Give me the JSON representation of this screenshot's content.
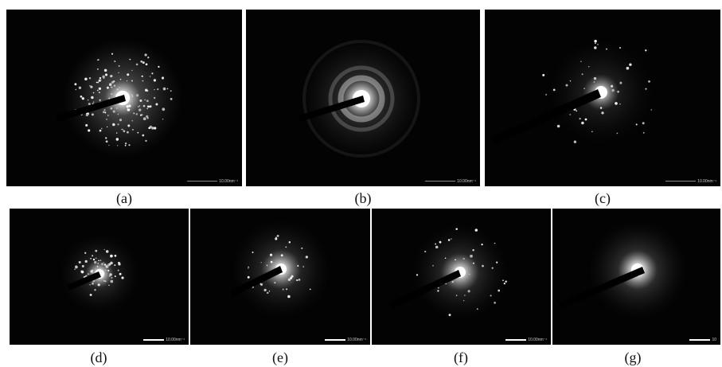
{
  "figure": {
    "panels": [
      {
        "id": "a",
        "caption": "(a)",
        "scale_bar_text": "10.00nm⁻¹",
        "pattern": "spotty-rings"
      },
      {
        "id": "b",
        "caption": "(b)",
        "scale_bar_text": "10.00nm⁻¹",
        "pattern": "diffuse-rings"
      },
      {
        "id": "c",
        "caption": "(c)",
        "scale_bar_text": "10.00nm⁻¹",
        "pattern": "sparse-spots"
      },
      {
        "id": "d",
        "caption": "(d)",
        "scale_bar_text": "10.00nm⁻¹",
        "pattern": "spotty-ring"
      },
      {
        "id": "e",
        "caption": "(e)",
        "scale_bar_text": "10.00nm⁻¹",
        "pattern": "diffuse-halo"
      },
      {
        "id": "f",
        "caption": "(f)",
        "scale_bar_text": "10.00nm⁻¹",
        "pattern": "halo-with-spots"
      },
      {
        "id": "g",
        "caption": "(g)",
        "scale_bar_text": "10",
        "pattern": "diffuse-halo"
      }
    ]
  }
}
